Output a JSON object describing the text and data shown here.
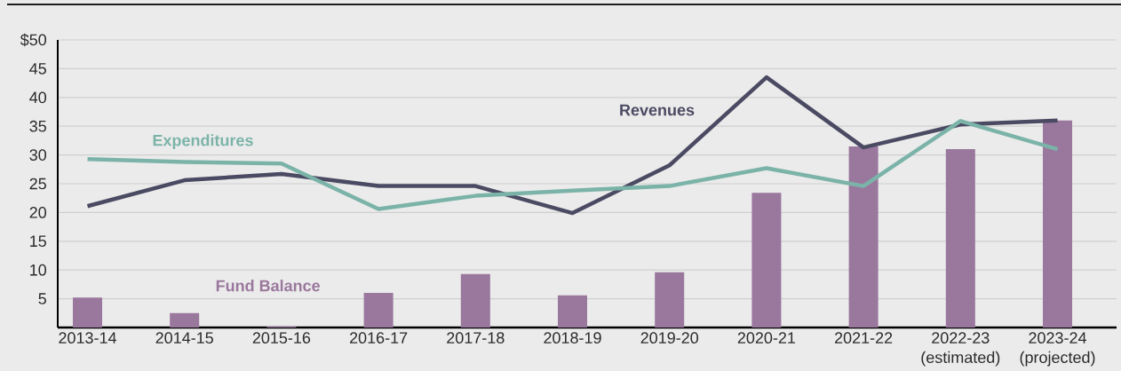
{
  "chart_data": {
    "type": "bar",
    "categories": [
      "2013-14",
      "2014-15",
      "2015-16",
      "2016-17",
      "2017-18",
      "2018-19",
      "2019-20",
      "2020-21",
      "2021-22",
      "2022-23 (estimated)",
      "2023-24 (projected)"
    ],
    "series": [
      {
        "name": "Fund Balance",
        "color": "#9a779d",
        "values": [
          5.2,
          2.5,
          0.2,
          6.0,
          9.3,
          5.6,
          9.6,
          23.4,
          31.5,
          31.0,
          36.0
        ]
      },
      {
        "name": "Revenues",
        "type": "line",
        "color": "#4b4a63",
        "values": [
          21.1,
          25.6,
          26.7,
          24.6,
          24.6,
          19.9,
          28.2,
          43.5,
          31.3,
          35.3,
          36.0
        ]
      },
      {
        "name": "Expenditures",
        "type": "line",
        "color": "#7bb3a8",
        "values": [
          29.3,
          28.8,
          28.5,
          20.6,
          22.9,
          23.8,
          24.6,
          27.7,
          24.6,
          35.9,
          31.0
        ]
      }
    ],
    "ylim": [
      0,
      50
    ],
    "yticks": [
      5,
      10,
      15,
      20,
      25,
      30,
      35,
      40,
      45,
      {
        "value": 50,
        "label": "$50"
      }
    ],
    "grid": "y",
    "marker": "none",
    "line_style": "solid"
  }
}
